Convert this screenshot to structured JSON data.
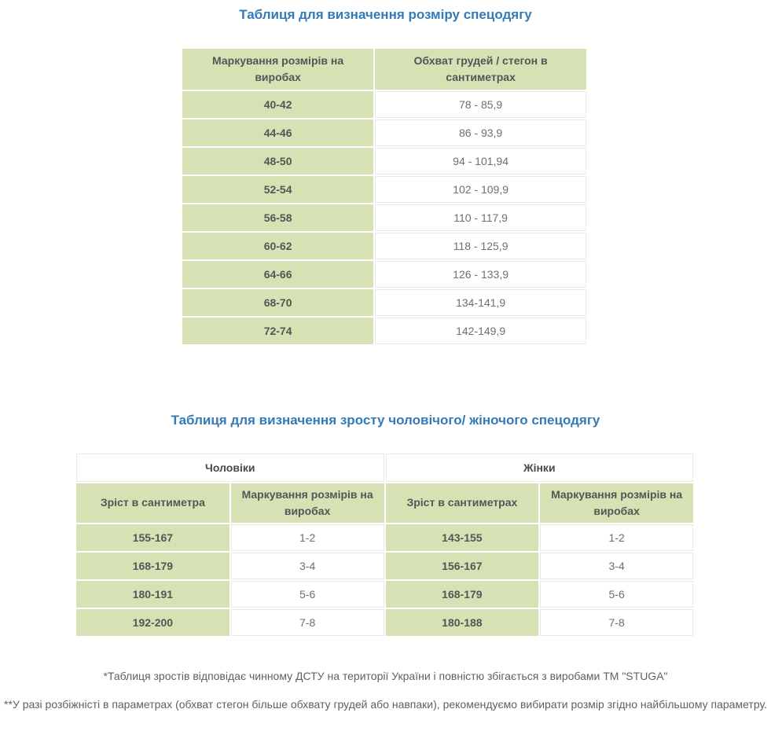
{
  "colors": {
    "title_blue": "#337ab7",
    "cell_green": "#d6e2b4",
    "header_text": "#555557",
    "value_text": "#6e6e6e",
    "border_gray": "#e9e9e9",
    "footnote_text": "#606060"
  },
  "size_table": {
    "title": "Таблиця для визначення розміру спецодягу",
    "columns": {
      "mark": "Маркування розмірів на виробах",
      "girth": "Обхват грудей / стегон в сантиметрах"
    },
    "rows": [
      {
        "mark": "40-42",
        "girth": "78 - 85,9"
      },
      {
        "mark": "44-46",
        "girth": "86 - 93,9"
      },
      {
        "mark": "48-50",
        "girth": "94 - 101,94"
      },
      {
        "mark": "52-54",
        "girth": "102 - 109,9"
      },
      {
        "mark": "56-58",
        "girth": "110 - 117,9"
      },
      {
        "mark": "60-62",
        "girth": "118 - 125,9"
      },
      {
        "mark": "64-66",
        "girth": "126 - 133,9"
      },
      {
        "mark": "68-70",
        "girth": "134-141,9"
      },
      {
        "mark": "72-74",
        "girth": "142-149,9"
      }
    ]
  },
  "height_table": {
    "title": "Таблиця для визначення зросту чоловічого/ жіночого спецодягу",
    "groups": {
      "men": "Чоловіки",
      "women": "Жінки"
    },
    "columns": {
      "men_height": "Зріст в сантиметра",
      "men_mark": "Маркування розмірів на виробах",
      "women_height": "Зріст в сантиметрах",
      "women_mark": "Маркування розмірів на виробах"
    },
    "rows": [
      {
        "men_height": "155-167",
        "men_mark": "1-2",
        "women_height": "143-155",
        "women_mark": "1-2"
      },
      {
        "men_height": "168-179",
        "men_mark": "3-4",
        "women_height": "156-167",
        "women_mark": "3-4"
      },
      {
        "men_height": "180-191",
        "men_mark": "5-6",
        "women_height": "168-179",
        "women_mark": "5-6"
      },
      {
        "men_height": "192-200",
        "men_mark": "7-8",
        "women_height": "180-188",
        "women_mark": "7-8"
      }
    ]
  },
  "footnotes": {
    "dstu": "*Таблиця зростів відповідає чинному ДСТУ на території України і повністю збігається з виробами ТМ \"STUGA\"",
    "discrepancy": "**У разі розбіжністі в параметрах (обхват стегон більше обхвату грудей або навпаки), рекомендуємо вибирати розмір згідно найбільшому параметру."
  }
}
